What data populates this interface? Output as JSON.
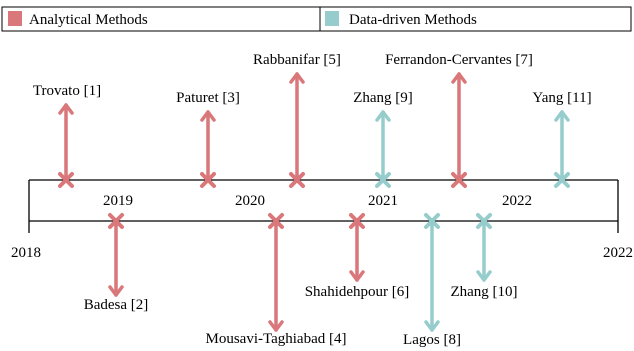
{
  "legend": {
    "analytical_label": "Analytical Methods",
    "datadriven_label": "Data-driven Methods"
  },
  "colors": {
    "analytical": "#d9777a",
    "datadriven": "#96cdcc",
    "axis": "#000000"
  },
  "years": {
    "y2018": "2018",
    "y2019": "2019",
    "y2020": "2020",
    "y2021": "2021",
    "y2022": "2022",
    "y2022_end": "2022"
  },
  "entries": [
    {
      "label": "Trovato [1]",
      "category": "analytical",
      "side": "above"
    },
    {
      "label": "Paturet [3]",
      "category": "analytical",
      "side": "above"
    },
    {
      "label": "Rabbanifar [5]",
      "category": "analytical",
      "side": "above"
    },
    {
      "label": "Zhang [9]",
      "category": "datadriven",
      "side": "above"
    },
    {
      "label": "Ferrandon-Cervantes [7]",
      "category": "analytical",
      "side": "above"
    },
    {
      "label": "Yang [11]",
      "category": "datadriven",
      "side": "above"
    },
    {
      "label": "Badesa [2]",
      "category": "analytical",
      "side": "below"
    },
    {
      "label": "Mousavi-Taghiabad [4]",
      "category": "analytical",
      "side": "below"
    },
    {
      "label": "Shahidehpour [6]",
      "category": "analytical",
      "side": "below"
    },
    {
      "label": "Lagos [8]",
      "category": "datadriven",
      "side": "below"
    },
    {
      "label": "Zhang [10]",
      "category": "datadriven",
      "side": "below"
    }
  ]
}
